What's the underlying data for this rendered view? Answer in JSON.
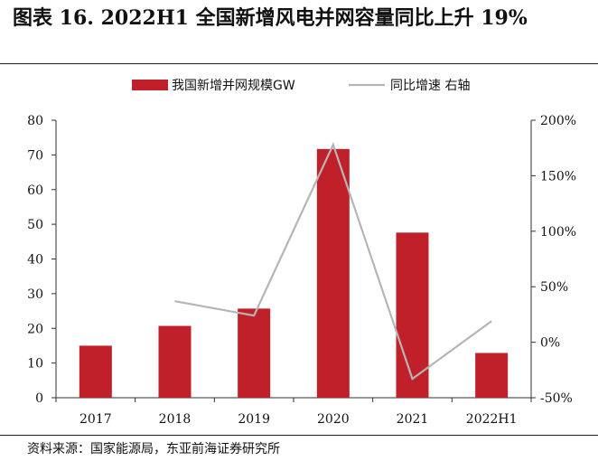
{
  "page": {
    "title": "图表 16. 2022H1 全国新增风电并网容量同比上升 19%",
    "source": "资料来源：国家能源局，东亚前海证券研究所"
  },
  "colors": {
    "bar": "#C0202A",
    "line": "#B5B5B5",
    "axis": "#333333"
  },
  "chart_data": {
    "type": "bar",
    "categories": [
      "2017",
      "2018",
      "2019",
      "2020",
      "2021",
      "2022H1"
    ],
    "series": [
      {
        "name": "我国新增并网规模GW",
        "type": "bar",
        "axis": "left",
        "values": [
          15.0,
          20.7,
          25.7,
          71.7,
          47.6,
          12.9
        ]
      },
      {
        "name": "同比增速 右轴",
        "type": "line",
        "axis": "right",
        "values": [
          null,
          37,
          24,
          178,
          -33,
          19
        ]
      }
    ],
    "y_left": {
      "min": 0,
      "max": 80,
      "step": 10,
      "ticks": [
        "0",
        "10",
        "20",
        "30",
        "40",
        "50",
        "60",
        "70",
        "80"
      ]
    },
    "y_right": {
      "min": -50,
      "max": 200,
      "step": 50,
      "ticks": [
        "-50%",
        "0%",
        "50%",
        "100%",
        "150%",
        "200%"
      ]
    },
    "legend": "top-center",
    "grid": false
  }
}
